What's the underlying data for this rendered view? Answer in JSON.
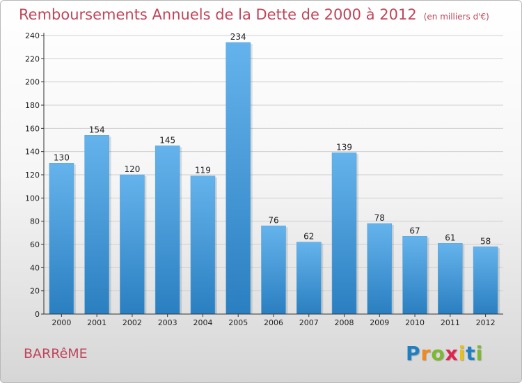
{
  "title": {
    "main": "Remboursements Annuels de la Dette de 2000 à 2012",
    "unit": "(en milliers d'€)"
  },
  "footer": {
    "place": "BARRêME",
    "logo": {
      "letters": [
        "P",
        "r",
        "o",
        "x",
        "i",
        "t",
        "i"
      ],
      "colors": [
        "#1f7fc1",
        "#f08a1c",
        "#7cb92e",
        "#e0244c",
        "#e8c117",
        "#1f7fc1",
        "#7cb92e"
      ]
    }
  },
  "colors": {
    "bar_light": "#65b3ec",
    "bar_dark": "#2a7fc0",
    "axis": "#333333",
    "grid": "#cfcfcf"
  },
  "chart_data": {
    "type": "bar",
    "categories": [
      "2000",
      "2001",
      "2002",
      "2003",
      "2004",
      "2005",
      "2006",
      "2007",
      "2008",
      "2009",
      "2010",
      "2011",
      "2012"
    ],
    "values": [
      130,
      154,
      120,
      145,
      119,
      234,
      76,
      62,
      139,
      78,
      67,
      61,
      58
    ],
    "ylim": [
      0,
      240
    ],
    "yticks": [
      0,
      20,
      40,
      60,
      80,
      100,
      120,
      140,
      160,
      180,
      200,
      220,
      240
    ],
    "grid": true,
    "data_labels": true
  }
}
